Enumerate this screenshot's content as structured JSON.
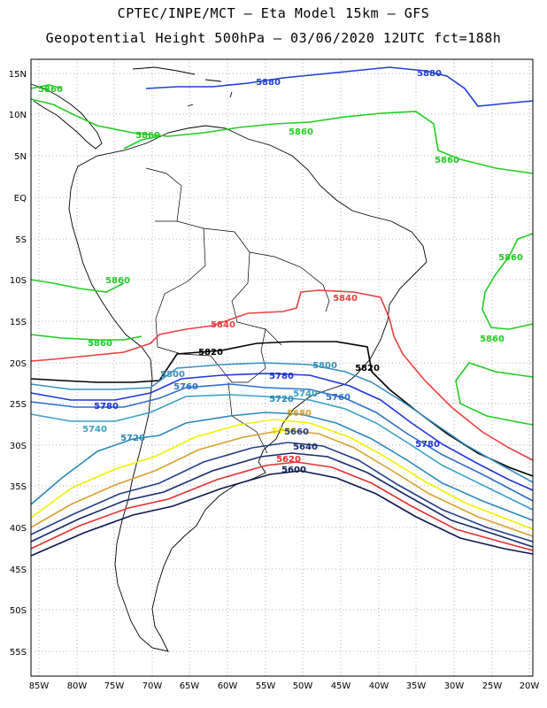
{
  "title_line1": "CPTEC/INPE/MCT –  Eta Model 15km – GFS",
  "title_line2": "Geopotential Height 500hPa – 03/06/2020 12UTC fct=188h",
  "lat_labels": [
    "15N",
    "10N",
    "5N",
    "EQ",
    "5S",
    "10S",
    "15S",
    "20S",
    "25S",
    "30S",
    "35S",
    "40S",
    "45S",
    "50S",
    "55S"
  ],
  "lon_labels": [
    "85W",
    "80W",
    "75W",
    "70W",
    "65W",
    "60W",
    "55W",
    "50W",
    "45W",
    "40W",
    "35W",
    "30W",
    "25W",
    "20W"
  ],
  "contours": [
    {
      "value": "5880",
      "color": "#1f3fd6"
    },
    {
      "value": "5860",
      "color": "#22cc22"
    },
    {
      "value": "5840",
      "color": "#e84040"
    },
    {
      "value": "5820",
      "color": "#000000"
    },
    {
      "value": "5800",
      "color": "#3a8fbf"
    },
    {
      "value": "5780",
      "color": "#1d35d8"
    },
    {
      "value": "5760",
      "color": "#2b6fcc"
    },
    {
      "value": "5740",
      "color": "#3aa0c8"
    },
    {
      "value": "5720",
      "color": "#2a88b8"
    },
    {
      "value": "5700",
      "color": "#f2f200"
    },
    {
      "value": "5680",
      "color": "#d9a030"
    },
    {
      "value": "5660",
      "color": "#243f8a"
    },
    {
      "value": "5640",
      "color": "#152a68"
    },
    {
      "value": "5620",
      "color": "#e23030"
    },
    {
      "value": "5600",
      "color": "#0a1650"
    }
  ],
  "labels": [
    {
      "text": "5880",
      "color": "#1f3fd6"
    },
    {
      "text": "5880",
      "color": "#1f3fd6"
    },
    {
      "text": "5860",
      "color": "#22cc22"
    },
    {
      "text": "5860",
      "color": "#22cc22"
    },
    {
      "text": "5860",
      "color": "#22cc22"
    },
    {
      "text": "5860",
      "color": "#22cc22"
    },
    {
      "text": "5860",
      "color": "#22cc22"
    },
    {
      "text": "5860",
      "color": "#22cc22"
    },
    {
      "text": "5860",
      "color": "#22cc22"
    },
    {
      "text": "5860",
      "color": "#22cc22"
    },
    {
      "text": "5840",
      "color": "#e84040"
    },
    {
      "text": "5840",
      "color": "#e84040"
    },
    {
      "text": "5820",
      "color": "#000000"
    },
    {
      "text": "5820",
      "color": "#000000"
    },
    {
      "text": "5800",
      "color": "#3a8fbf"
    },
    {
      "text": "5800",
      "color": "#3a8fbf"
    },
    {
      "text": "5780",
      "color": "#1d35d8"
    },
    {
      "text": "5780",
      "color": "#1d35d8"
    },
    {
      "text": "5780",
      "color": "#1d35d8"
    },
    {
      "text": "5760",
      "color": "#2b6fcc"
    },
    {
      "text": "5760",
      "color": "#2b6fcc"
    },
    {
      "text": "5740",
      "color": "#3aa0c8"
    },
    {
      "text": "5740",
      "color": "#3aa0c8"
    },
    {
      "text": "5720",
      "color": "#2a88b8"
    },
    {
      "text": "5720",
      "color": "#2a88b8"
    },
    {
      "text": "5700",
      "color": "#f2f200"
    },
    {
      "text": "5680",
      "color": "#d9a030"
    },
    {
      "text": "5660",
      "color": "#243f8a"
    },
    {
      "text": "5640",
      "color": "#152a68"
    },
    {
      "text": "5620",
      "color": "#e23030"
    },
    {
      "text": "5600",
      "color": "#0a1650"
    }
  ]
}
